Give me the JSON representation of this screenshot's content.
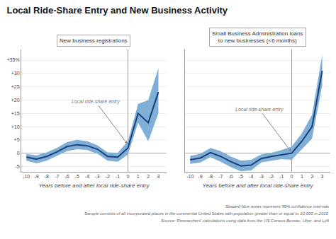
{
  "title": "Local Ride-Share Entry and New Business Activity",
  "annotations": [
    "Shaded-blue areas represent 95% confidence intervals",
    "Sample consists of all incorporated places in the continental United States with population greater than or equal to 10,000 in 2010",
    "Source: Researchers’ calculations using data from the US Census Bureau, Uber, and Lyft"
  ],
  "chart_data": [
    {
      "type": "line",
      "title": "New business registrations",
      "xlabel": "Years before and after local ride-share entry",
      "x": [
        -10,
        -9,
        -8,
        -7,
        -6,
        -5,
        -4,
        -3,
        -2,
        -1,
        0,
        1,
        2,
        3
      ],
      "xlim": [
        -10.5,
        3.8
      ],
      "xticks": [
        -10,
        -9,
        -8,
        -7,
        -6,
        -5,
        -4,
        -3,
        -2,
        -1,
        0,
        1,
        2,
        3
      ],
      "ylim": [
        -7,
        39
      ],
      "yticks": [
        -5,
        0,
        {
          "value": 5,
          "label": "+5"
        },
        {
          "value": 10,
          "label": "+10"
        },
        {
          "value": 15,
          "label": "+15"
        },
        {
          "value": 20,
          "label": "+20"
        },
        {
          "value": 25,
          "label": "+25"
        },
        {
          "value": 30,
          "label": "+30"
        },
        {
          "value": 35,
          "label": "+35%"
        }
      ],
      "grid": true,
      "annotations": [
        {
          "text": "Local ride-share entry",
          "x": -0.05,
          "y": 3.5
        }
      ],
      "series": [
        {
          "type": "band",
          "color": "#7fafd6",
          "upper": [
            -0.3,
            -0.8,
            0.3,
            2.0,
            4.2,
            5.0,
            4.5,
            3.0,
            0.3,
            0.2,
            4.5,
            18.5,
            20.0,
            32.0
          ],
          "lower": [
            -2.8,
            -3.8,
            -2.8,
            -1.0,
            0.8,
            1.5,
            1.2,
            -0.2,
            -2.8,
            -3.2,
            -0.5,
            11.5,
            4.5,
            15.0
          ]
        },
        {
          "type": "line",
          "color": "#1b3f7a",
          "values": [
            -1.5,
            -2.2,
            -1.2,
            0.5,
            2.5,
            3.2,
            2.8,
            1.5,
            -1.2,
            -1.5,
            2.0,
            15.0,
            11.5,
            23.0
          ]
        }
      ]
    },
    {
      "type": "line",
      "title": "Small Business Administration loans\nto new businesses (<6 months)",
      "xlabel": "Years before and after local ride-share entry",
      "x": [
        -10,
        -9,
        -8,
        -7,
        -6,
        -5,
        -4,
        -3,
        -2,
        -1,
        0,
        1,
        2,
        3
      ],
      "xlim": [
        -10.5,
        3.8
      ],
      "xticks": [
        -10,
        -9,
        -8,
        -7,
        -6,
        -5,
        -4,
        -3,
        -2,
        -1,
        0,
        1,
        2,
        3
      ],
      "ylim": [
        -7,
        39
      ],
      "yticks": [
        -5,
        0,
        5,
        10,
        15,
        20,
        25,
        30,
        35
      ],
      "tick_labels": "x",
      "grid": true,
      "annotations": [
        {
          "text": "Local ride-share entry",
          "x": -0.05,
          "y": 0.5
        }
      ],
      "series": [
        {
          "type": "band",
          "color": "#7fafd6",
          "upper": [
            -1.0,
            -0.2,
            2.0,
            0.8,
            -1.2,
            -2.8,
            -2.5,
            -0.5,
            0.2,
            1.2,
            2.5,
            7.5,
            14.5,
            37.0
          ],
          "lower": [
            -4.0,
            -3.5,
            -1.5,
            -3.2,
            -5.2,
            -6.8,
            -6.5,
            -3.5,
            -2.8,
            -2.2,
            -2.5,
            1.5,
            5.5,
            25.5
          ]
        },
        {
          "type": "line",
          "color": "#1b3f7a",
          "values": [
            -2.5,
            -1.8,
            0.2,
            -1.2,
            -3.2,
            -4.8,
            -4.5,
            -2.0,
            -1.2,
            -0.5,
            0.0,
            4.5,
            10.0,
            31.0
          ]
        }
      ]
    }
  ]
}
